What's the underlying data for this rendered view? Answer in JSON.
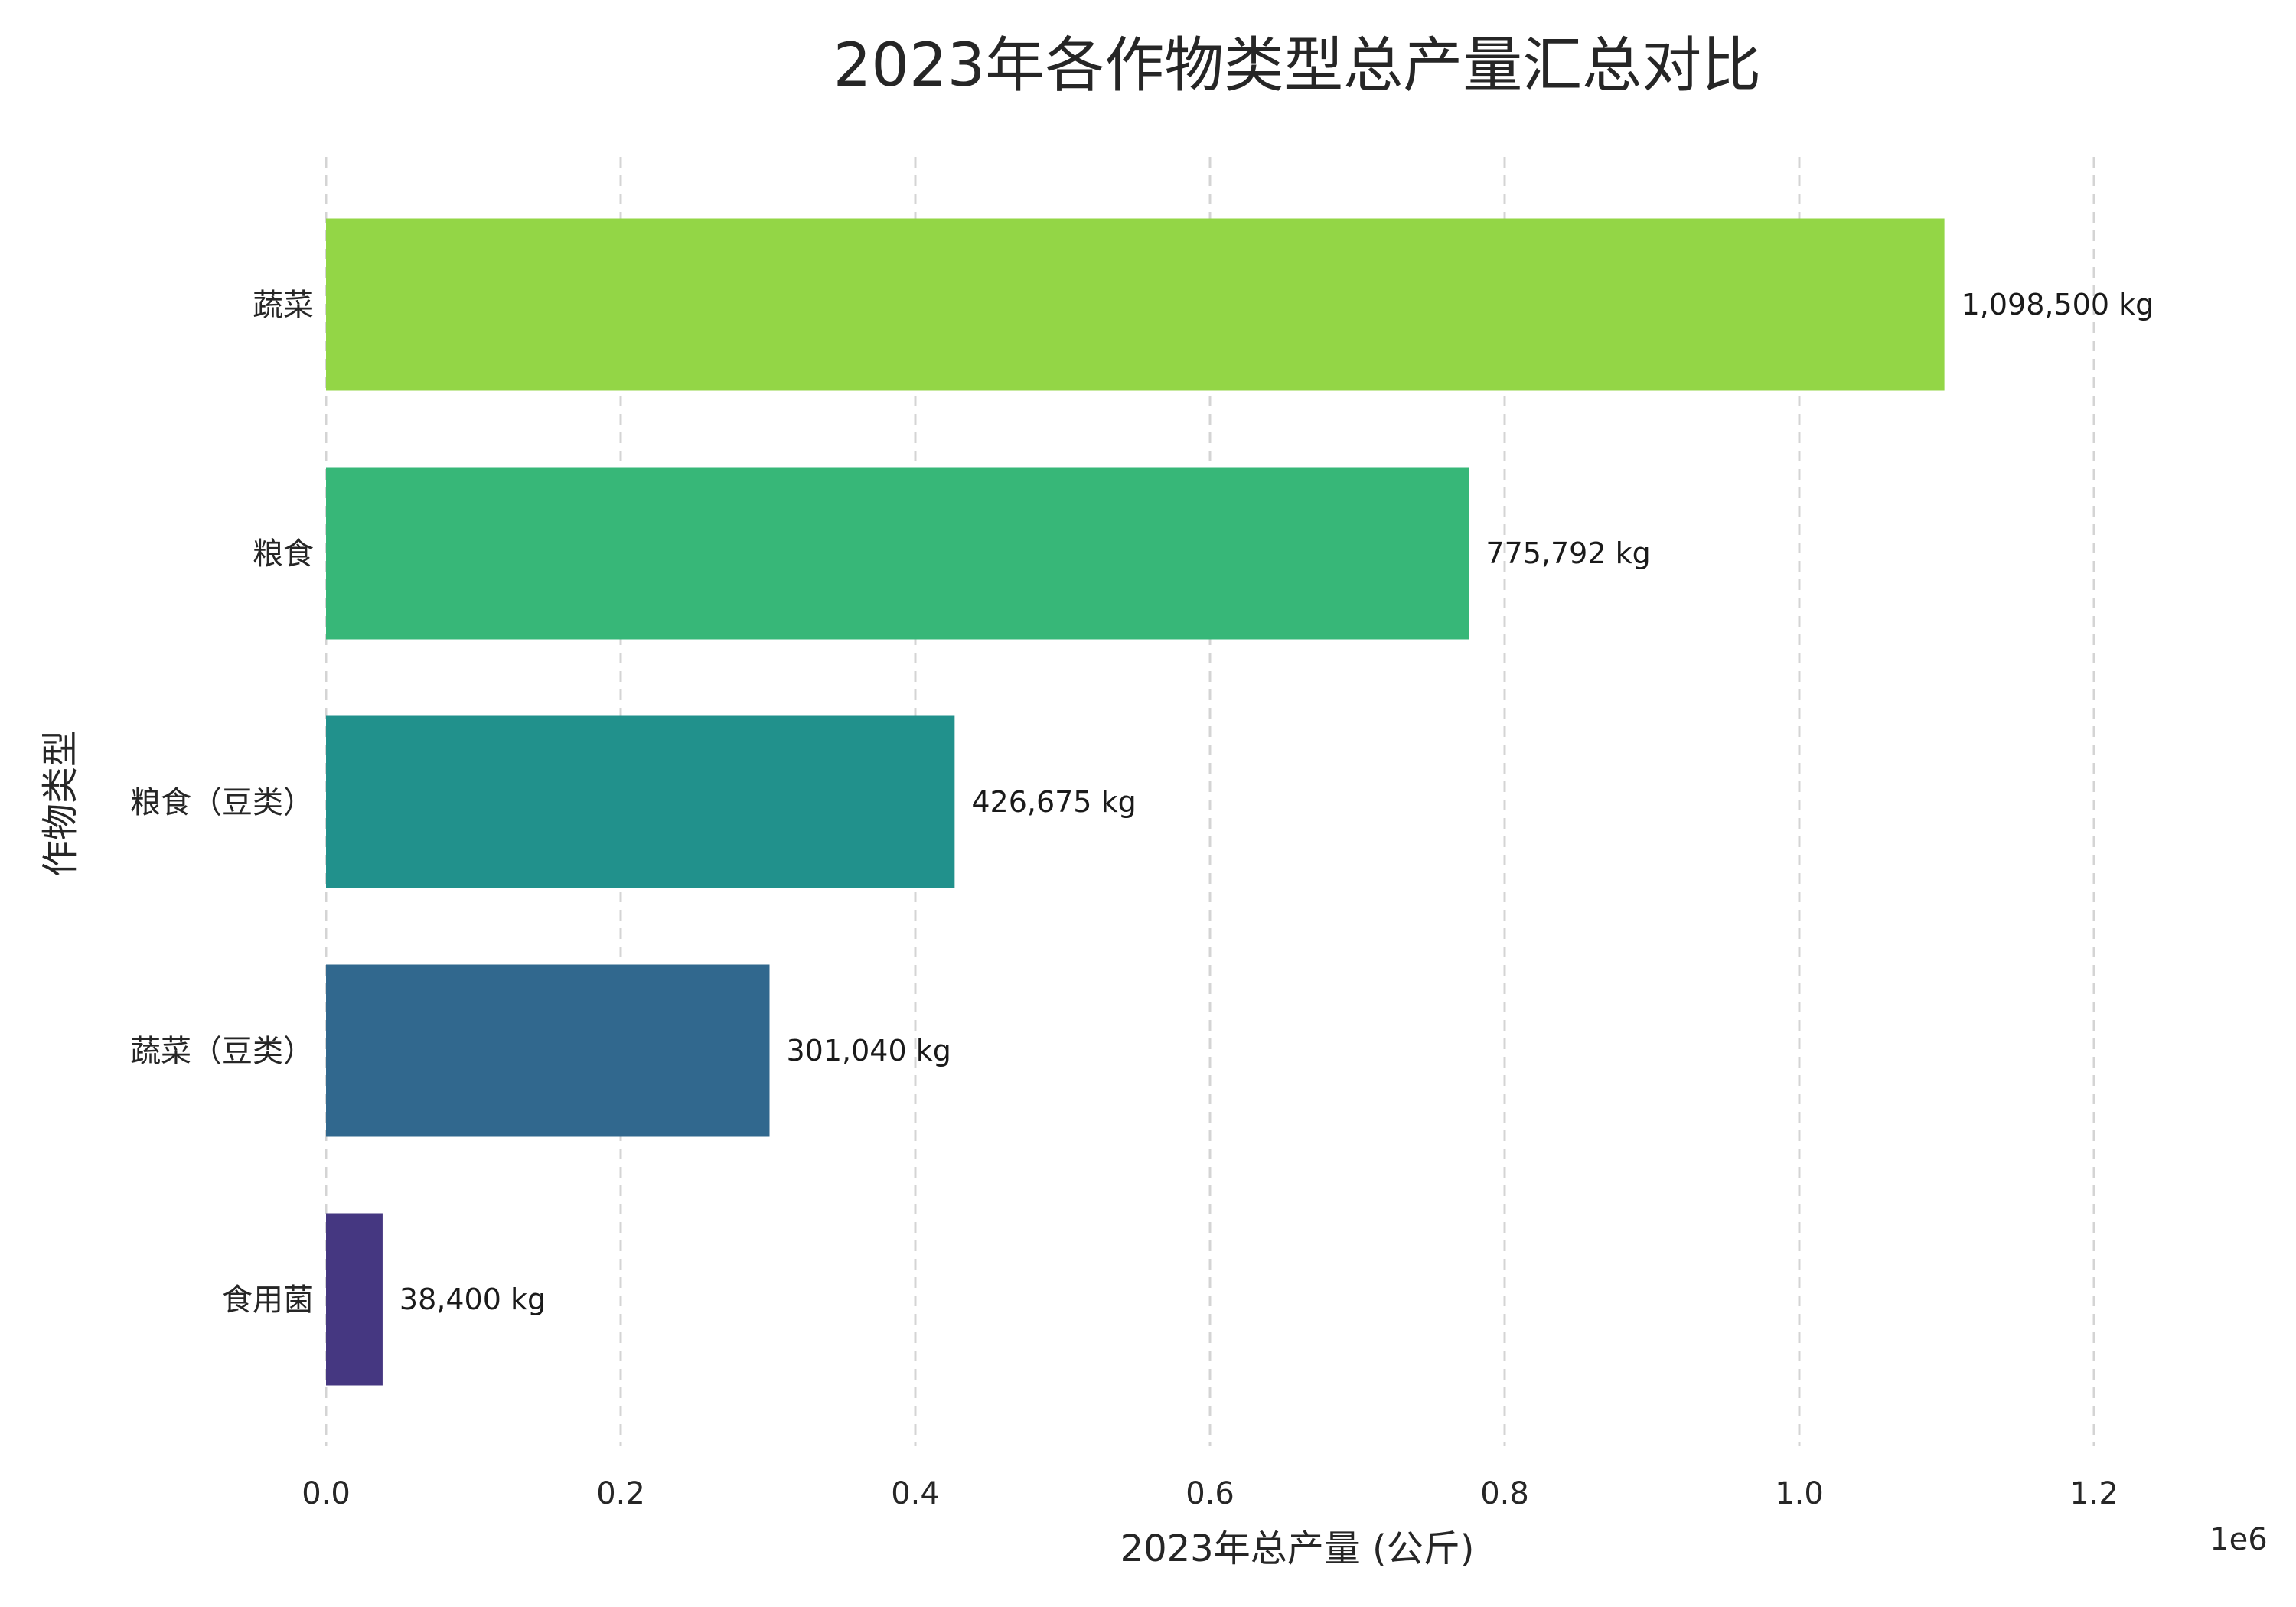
{
  "chart_data": {
    "type": "bar",
    "orientation": "horizontal",
    "title": "2023年各作物类型总产量汇总对比",
    "xlabel": "2023年总产量 (公斤)",
    "ylabel": "作物类型",
    "x_offset_label": "1e6",
    "xlim": [
      0,
      1.2
    ],
    "xticks": [
      "0.0",
      "0.2",
      "0.4",
      "0.6",
      "0.8",
      "1.0",
      "1.2"
    ],
    "grid": "x-dashed",
    "categories": [
      "蔬菜",
      "粮食",
      "粮食（豆类）",
      "蔬菜（豆类）",
      "食用菌"
    ],
    "values": [
      1098500,
      775792,
      426675,
      301040,
      38400
    ],
    "data_labels": [
      "1,098,500 kg",
      "775,792 kg",
      "426,675 kg",
      "301,040 kg",
      "38,400 kg"
    ],
    "colors": [
      "#93d646",
      "#37b778",
      "#21918c",
      "#31688e",
      "#453781"
    ]
  }
}
